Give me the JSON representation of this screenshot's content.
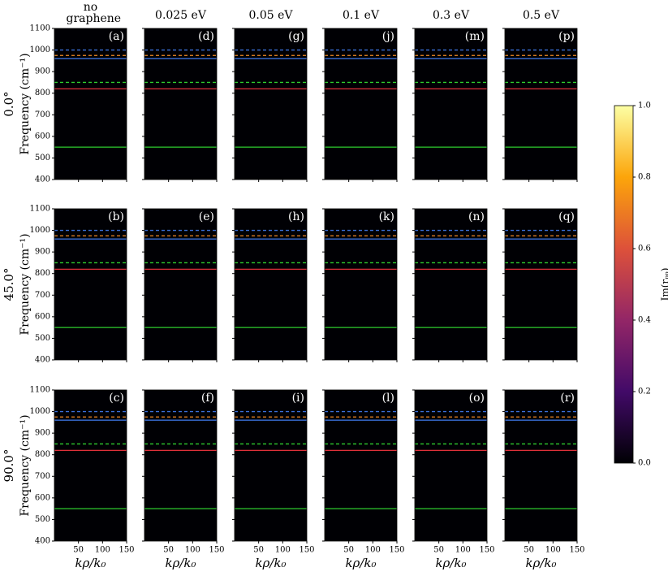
{
  "chart_data": {
    "type": "heatmap",
    "column_titles": [
      "no graphene",
      "0.025 eV",
      "0.05 eV",
      "0.1 eV",
      "0.3 eV",
      "0.5 eV"
    ],
    "rows": [
      {
        "title": "0.0°",
        "panels": [
          "(a)",
          "(d)",
          "(g)",
          "(j)",
          "(m)",
          "(p)"
        ]
      },
      {
        "title": "45.0°",
        "panels": [
          "(b)",
          "(e)",
          "(h)",
          "(k)",
          "(n)",
          "(q)"
        ]
      },
      {
        "title": "90.0°",
        "panels": [
          "(c)",
          "(f)",
          "(i)",
          "(l)",
          "(o)",
          "(r)"
        ]
      }
    ],
    "xlabel": "kρ/k₀",
    "ylabel": "Frequency (cm⁻¹)",
    "xlim": [
      0,
      150
    ],
    "xticks": [
      50,
      100,
      150
    ],
    "ylim": [
      400,
      1100
    ],
    "yticks": [
      400,
      500,
      600,
      700,
      800,
      900,
      1000,
      1100
    ],
    "reference_lines": [
      {
        "value": 550,
        "color": "#2ecc2e",
        "style": "solid"
      },
      {
        "value": 820,
        "color": "#e0303a",
        "style": "solid"
      },
      {
        "value": 850,
        "color": "#2ecc2e",
        "style": "dashed"
      },
      {
        "value": 960,
        "color": "#3a6fd8",
        "style": "solid"
      },
      {
        "value": 975,
        "color": "#f08a24",
        "style": "dashed"
      },
      {
        "value": 1000,
        "color": "#3a6fd8",
        "style": "dashed"
      }
    ],
    "colorbar": {
      "label": "Im(rₚₚ)",
      "lim": [
        0,
        1
      ],
      "colors": [
        "#000004",
        "#420a68",
        "#932667",
        "#dd513a",
        "#fca50a",
        "#fcffa4"
      ],
      "ticks": [
        {
          "value": 0,
          "label": "0.0"
        },
        {
          "value": 0.2,
          "label": "0.2"
        },
        {
          "value": 0.4,
          "label": "0.4"
        },
        {
          "value": 0.6,
          "label": "0.6"
        },
        {
          "value": 0.8,
          "label": "0.8"
        },
        {
          "value": 1,
          "label": "1.0"
        }
      ]
    }
  }
}
